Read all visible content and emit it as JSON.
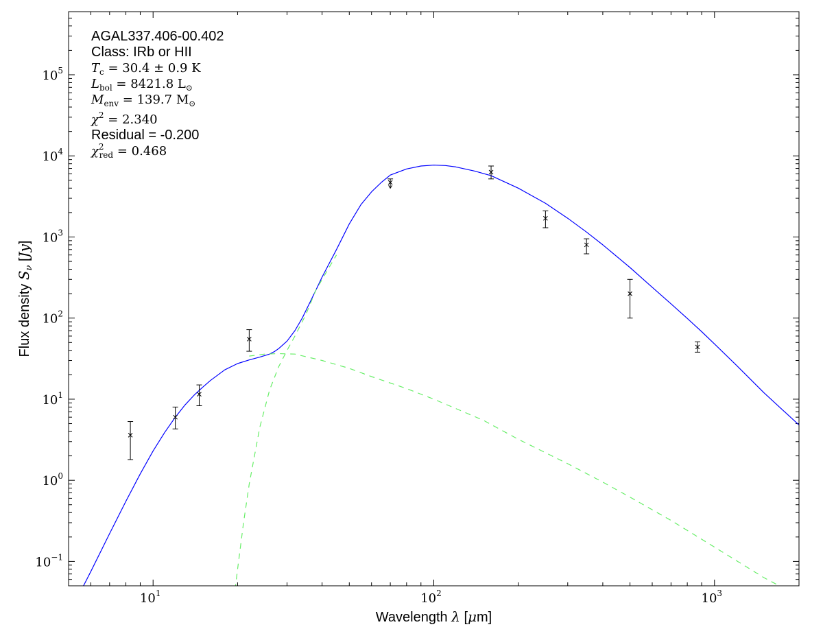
{
  "chart_data": {
    "type": "line",
    "title": "",
    "xlabel": "Wavelength λ [μm]",
    "ylabel": "Flux density S_ν [Jy]",
    "xlabel_parts": {
      "prefix": "Wavelength ",
      "symbol": "λ",
      "unit_open": " [",
      "unit_mu": "μ",
      "unit_rest": "m]"
    },
    "ylabel_parts": {
      "prefix": "Flux density ",
      "symbol": "S",
      "sub": "ν",
      "unit_open": " [",
      "unit": "Jy",
      "unit_close": "]"
    },
    "x_scale": "log",
    "y_scale": "log",
    "xlim": [
      5,
      2000
    ],
    "ylim": [
      0.05,
      600000
    ],
    "grid": false,
    "legend": "none",
    "x_ticks": [
      {
        "value": 10,
        "base": "10",
        "exp": "1"
      },
      {
        "value": 100,
        "base": "10",
        "exp": "2"
      },
      {
        "value": 1000,
        "base": "10",
        "exp": "3"
      }
    ],
    "y_ticks": [
      {
        "value": 0.1,
        "base": "10",
        "exp": "−1"
      },
      {
        "value": 1,
        "base": "10",
        "exp": "0"
      },
      {
        "value": 10,
        "base": "10",
        "exp": "1"
      },
      {
        "value": 100,
        "base": "10",
        "exp": "2"
      },
      {
        "value": 1000,
        "base": "10",
        "exp": "3"
      },
      {
        "value": 10000,
        "base": "10",
        "exp": "4"
      },
      {
        "value": 100000,
        "base": "10",
        "exp": "5"
      }
    ],
    "annotations": {
      "source": "AGAL337.406-00.402",
      "class": "Class: IRb or HII",
      "tc": {
        "var": "T",
        "sub": "c",
        "rest": " = 30.4 ± 0.9 K"
      },
      "lbol": {
        "var": "L",
        "sub": "bol",
        "rest": " = 8421.8 L",
        "rest_sub": "⊙"
      },
      "menv": {
        "var": "M",
        "sub": "env",
        "rest": " = 139.7 M",
        "rest_sub": "⊙"
      },
      "chi2": {
        "var": "χ",
        "sup": "2",
        "rest": " = 2.340"
      },
      "residual": "Residual = -0.200",
      "chi2red": {
        "var": "χ",
        "sup": "2",
        "sub": "red",
        "rest": " = 0.468"
      }
    },
    "series": [
      {
        "kind": "model-total",
        "color": "#0000ff",
        "style": "solid",
        "x": [
          5.6,
          6,
          7,
          8,
          9,
          10,
          11,
          12,
          13,
          14,
          15,
          16,
          18,
          20,
          22,
          24,
          26,
          27,
          28,
          30,
          32,
          34,
          36,
          38,
          40,
          45,
          50,
          55,
          60,
          65,
          70,
          80,
          90,
          100,
          110,
          120,
          140,
          160,
          200,
          250,
          300,
          350,
          400,
          500,
          600,
          700,
          800,
          900,
          1000,
          1200,
          1500,
          2000
        ],
        "y": [
          0.047,
          0.075,
          0.22,
          0.55,
          1.2,
          2.3,
          3.9,
          6.0,
          8.5,
          11.2,
          14.0,
          17.0,
          23.0,
          27.5,
          30.5,
          33.0,
          36.0,
          38.5,
          42.0,
          52,
          70,
          100,
          150,
          220,
          320,
          700,
          1450,
          2500,
          3600,
          4700,
          5800,
          6900,
          7500,
          7700,
          7600,
          7300,
          6500,
          5700,
          4000,
          2600,
          1700,
          1150,
          800,
          420,
          240,
          150,
          99,
          68,
          48,
          26,
          12,
          4.8
        ]
      },
      {
        "kind": "model-warm-component",
        "color": "#66ee66",
        "style": "dashed",
        "x": [
          22,
          25,
          28,
          32,
          40,
          50,
          60,
          80,
          100,
          150,
          200,
          300,
          400,
          500,
          700,
          1000,
          1500,
          1800
        ],
        "y": [
          34,
          36,
          36.5,
          36,
          30,
          24,
          19,
          13.5,
          10,
          5.5,
          3.2,
          1.6,
          0.95,
          0.62,
          0.32,
          0.15,
          0.063,
          0.045
        ]
      },
      {
        "kind": "model-cold-component",
        "color": "#66ee66",
        "style": "dashed",
        "x": [
          19.6,
          20,
          21,
          22,
          24,
          26,
          28,
          30,
          32,
          35,
          38,
          42,
          45
        ],
        "y": [
          0.045,
          0.08,
          0.3,
          0.9,
          4.5,
          13,
          25,
          40,
          60,
          110,
          220,
          400,
          600
        ]
      }
    ],
    "points": [
      {
        "x": 8.3,
        "y": 3.6,
        "err_low": 1.8,
        "err_high": 5.3,
        "upper_limit": false
      },
      {
        "x": 12.0,
        "y": 6.0,
        "err_low": 4.3,
        "err_high": 8.0,
        "upper_limit": false
      },
      {
        "x": 14.6,
        "y": 11.5,
        "err_low": 8.3,
        "err_high": 15.0,
        "upper_limit": false
      },
      {
        "x": 22.0,
        "y": 55,
        "err_low": 39,
        "err_high": 72,
        "upper_limit": false
      },
      {
        "x": 70,
        "y": 4700,
        "err_low": 4000,
        "err_high": 5200,
        "upper_limit": true
      },
      {
        "x": 160,
        "y": 6300,
        "err_low": 5200,
        "err_high": 7500,
        "upper_limit": false
      },
      {
        "x": 250,
        "y": 1700,
        "err_low": 1300,
        "err_high": 2100,
        "upper_limit": false
      },
      {
        "x": 350,
        "y": 800,
        "err_low": 620,
        "err_high": 950,
        "upper_limit": false
      },
      {
        "x": 500,
        "y": 200,
        "err_low": 100,
        "err_high": 300,
        "upper_limit": false
      },
      {
        "x": 870,
        "y": 44,
        "err_low": 38,
        "err_high": 51,
        "upper_limit": false
      }
    ]
  }
}
